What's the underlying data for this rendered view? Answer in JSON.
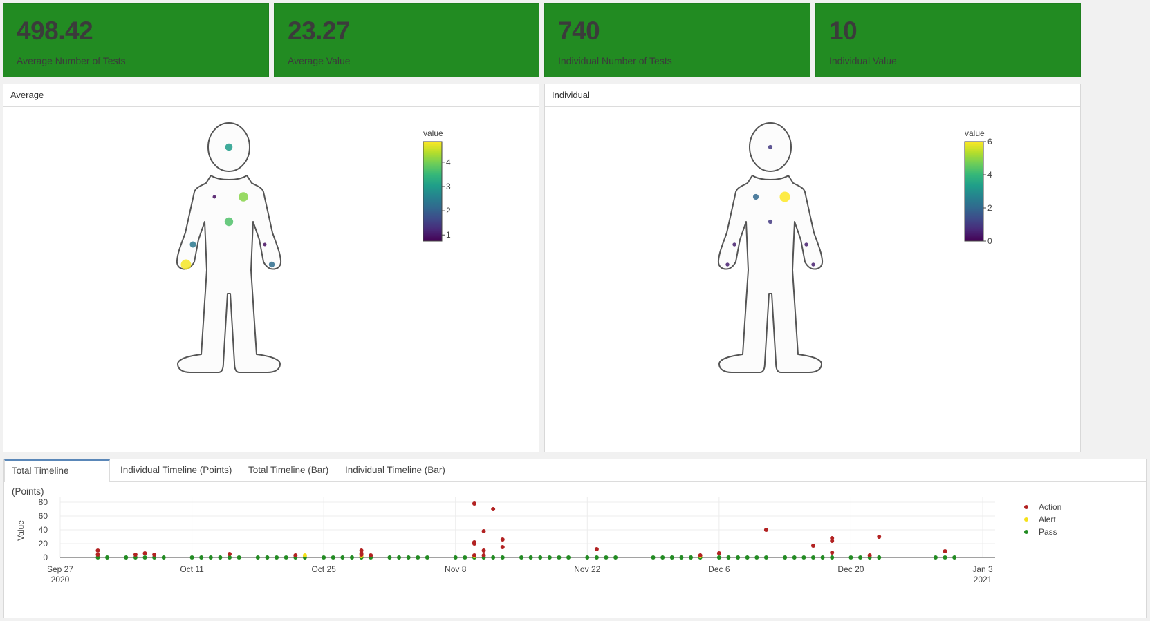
{
  "kpis": [
    {
      "value": "498.42",
      "label": "Average Number of Tests"
    },
    {
      "value": "23.27",
      "label": "Average Value"
    },
    {
      "value": "740",
      "label": "Individual Number of Tests"
    },
    {
      "value": "10",
      "label": "Individual Value"
    }
  ],
  "panels": {
    "average": {
      "title": "Average",
      "colorbar_title": "value",
      "colorbar_ticks": [
        "4",
        "3",
        "2",
        "1"
      ],
      "colorbar_range": [
        0.75,
        4.85
      ],
      "points": [
        {
          "site": "head",
          "value": 3.0
        },
        {
          "site": "right-chest",
          "value": 0.9
        },
        {
          "site": "left-chest",
          "value": 4.1
        },
        {
          "site": "abdomen",
          "value": 3.7
        },
        {
          "site": "right-forearm",
          "value": 2.4
        },
        {
          "site": "left-forearm",
          "value": 0.9
        },
        {
          "site": "right-hand",
          "value": 4.8
        },
        {
          "site": "left-hand",
          "value": 2.2
        }
      ]
    },
    "individual": {
      "title": "Individual",
      "colorbar_title": "value",
      "colorbar_ticks": [
        "6",
        "4",
        "2",
        "0"
      ],
      "colorbar_range": [
        0,
        6
      ],
      "points": [
        {
          "site": "head",
          "value": 1
        },
        {
          "site": "right-chest",
          "value": 2
        },
        {
          "site": "left-chest",
          "value": 6
        },
        {
          "site": "abdomen",
          "value": 1
        },
        {
          "site": "right-forearm",
          "value": 0.5
        },
        {
          "site": "left-forearm",
          "value": 0.5
        },
        {
          "site": "right-hand",
          "value": 0.5
        },
        {
          "site": "left-hand",
          "value": 0.5
        }
      ]
    }
  },
  "tabs": [
    "Total Timeline (Points)",
    "Individual Timeline (Points)",
    "Total Timeline (Bar)",
    "Individual Timeline (Bar)"
  ],
  "active_tab": 0,
  "chart_data": {
    "type": "scatter",
    "ylabel": "Value",
    "yticks": [
      0,
      20,
      40,
      60,
      80
    ],
    "xlim": [
      "2020-09-27",
      "2021-01-03"
    ],
    "xticks": [
      {
        "date": "2020-09-27",
        "label": "Sep 27",
        "sub": "2020"
      },
      {
        "date": "2020-10-11",
        "label": "Oct 11",
        "sub": ""
      },
      {
        "date": "2020-10-25",
        "label": "Oct 25",
        "sub": ""
      },
      {
        "date": "2020-11-08",
        "label": "Nov 8",
        "sub": ""
      },
      {
        "date": "2020-11-22",
        "label": "Nov 22",
        "sub": ""
      },
      {
        "date": "2020-12-06",
        "label": "Dec 6",
        "sub": ""
      },
      {
        "date": "2020-12-20",
        "label": "Dec 20",
        "sub": ""
      },
      {
        "date": "2021-01-03",
        "label": "Jan 3",
        "sub": "2021"
      }
    ],
    "grid": true,
    "legend": "top-right",
    "series": [
      {
        "name": "Action",
        "color": "#b22222",
        "points": [
          [
            "2020-10-01",
            10
          ],
          [
            "2020-10-01",
            4
          ],
          [
            "2020-10-05",
            4
          ],
          [
            "2020-10-06",
            6
          ],
          [
            "2020-10-07",
            4
          ],
          [
            "2020-10-15",
            5
          ],
          [
            "2020-10-22",
            3
          ],
          [
            "2020-10-29",
            10
          ],
          [
            "2020-10-29",
            6
          ],
          [
            "2020-10-29",
            4
          ],
          [
            "2020-10-30",
            3
          ],
          [
            "2020-11-10",
            78
          ],
          [
            "2020-11-10",
            22
          ],
          [
            "2020-11-10",
            20
          ],
          [
            "2020-11-10",
            3
          ],
          [
            "2020-11-11",
            38
          ],
          [
            "2020-11-11",
            10
          ],
          [
            "2020-11-11",
            3
          ],
          [
            "2020-11-12",
            70
          ],
          [
            "2020-11-13",
            26
          ],
          [
            "2020-11-13",
            15
          ],
          [
            "2020-11-23",
            12
          ],
          [
            "2020-12-04",
            3
          ],
          [
            "2020-12-06",
            6
          ],
          [
            "2020-12-11",
            40
          ],
          [
            "2020-12-16",
            17
          ],
          [
            "2020-12-18",
            28
          ],
          [
            "2020-12-18",
            24
          ],
          [
            "2020-12-18",
            7
          ],
          [
            "2020-12-22",
            3
          ],
          [
            "2020-12-23",
            30
          ],
          [
            "2020-12-30",
            9
          ]
        ]
      },
      {
        "name": "Alert",
        "color": "#f5e11a",
        "points": [
          [
            "2020-10-23",
            3
          ],
          [
            "2020-10-29",
            2
          ],
          [
            "2020-11-10",
            2
          ],
          [
            "2020-12-04",
            2
          ]
        ]
      },
      {
        "name": "Pass",
        "color": "#228b22",
        "points": [
          [
            "2020-10-01",
            0
          ],
          [
            "2020-10-02",
            0
          ],
          [
            "2020-10-04",
            0
          ],
          [
            "2020-10-05",
            0
          ],
          [
            "2020-10-06",
            0
          ],
          [
            "2020-10-07",
            0
          ],
          [
            "2020-10-08",
            0
          ],
          [
            "2020-10-11",
            0
          ],
          [
            "2020-10-12",
            0
          ],
          [
            "2020-10-13",
            0
          ],
          [
            "2020-10-14",
            0
          ],
          [
            "2020-10-15",
            0
          ],
          [
            "2020-10-16",
            0
          ],
          [
            "2020-10-18",
            0
          ],
          [
            "2020-10-19",
            0
          ],
          [
            "2020-10-20",
            0
          ],
          [
            "2020-10-21",
            0
          ],
          [
            "2020-10-22",
            0
          ],
          [
            "2020-10-23",
            0
          ],
          [
            "2020-10-25",
            0
          ],
          [
            "2020-10-26",
            0
          ],
          [
            "2020-10-27",
            0
          ],
          [
            "2020-10-28",
            0
          ],
          [
            "2020-10-29",
            0
          ],
          [
            "2020-10-30",
            0
          ],
          [
            "2020-11-01",
            0
          ],
          [
            "2020-11-02",
            0
          ],
          [
            "2020-11-03",
            0
          ],
          [
            "2020-11-04",
            0
          ],
          [
            "2020-11-05",
            0
          ],
          [
            "2020-11-08",
            0
          ],
          [
            "2020-11-09",
            0
          ],
          [
            "2020-11-10",
            0
          ],
          [
            "2020-11-11",
            0
          ],
          [
            "2020-11-12",
            0
          ],
          [
            "2020-11-13",
            0
          ],
          [
            "2020-11-15",
            0
          ],
          [
            "2020-11-16",
            0
          ],
          [
            "2020-11-17",
            0
          ],
          [
            "2020-11-18",
            0
          ],
          [
            "2020-11-19",
            0
          ],
          [
            "2020-11-20",
            0
          ],
          [
            "2020-11-22",
            0
          ],
          [
            "2020-11-23",
            0
          ],
          [
            "2020-11-24",
            0
          ],
          [
            "2020-11-25",
            0
          ],
          [
            "2020-11-29",
            0
          ],
          [
            "2020-11-30",
            0
          ],
          [
            "2020-12-01",
            0
          ],
          [
            "2020-12-02",
            0
          ],
          [
            "2020-12-03",
            0
          ],
          [
            "2020-12-04",
            0
          ],
          [
            "2020-12-06",
            0
          ],
          [
            "2020-12-07",
            0
          ],
          [
            "2020-12-08",
            0
          ],
          [
            "2020-12-09",
            0
          ],
          [
            "2020-12-10",
            0
          ],
          [
            "2020-12-11",
            0
          ],
          [
            "2020-12-13",
            0
          ],
          [
            "2020-12-14",
            0
          ],
          [
            "2020-12-15",
            0
          ],
          [
            "2020-12-16",
            0
          ],
          [
            "2020-12-17",
            0
          ],
          [
            "2020-12-18",
            0
          ],
          [
            "2020-12-20",
            0
          ],
          [
            "2020-12-21",
            0
          ],
          [
            "2020-12-22",
            0
          ],
          [
            "2020-12-23",
            0
          ],
          [
            "2020-12-29",
            0
          ],
          [
            "2020-12-30",
            0
          ],
          [
            "2020-12-31",
            0
          ]
        ]
      }
    ]
  }
}
